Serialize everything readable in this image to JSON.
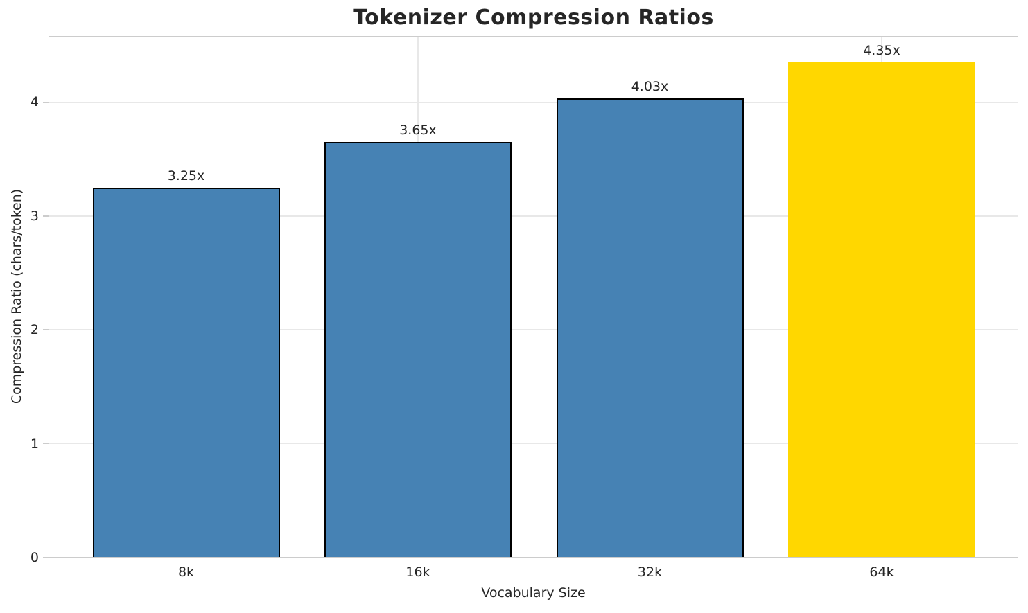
{
  "chart_data": {
    "type": "bar",
    "title": "Tokenizer Compression Ratios",
    "xlabel": "Vocabulary Size",
    "ylabel": "Compression Ratio (chars/token)",
    "categories": [
      "8k",
      "16k",
      "32k",
      "64k"
    ],
    "values": [
      3.25,
      3.65,
      4.03,
      4.35
    ],
    "value_labels": [
      "3.25x",
      "3.65x",
      "4.03x",
      "4.35x"
    ],
    "yticks": [
      0,
      1,
      2,
      3,
      4
    ],
    "ylim": [
      0,
      4.58
    ],
    "bar_colors": [
      "#4682B4",
      "#4682B4",
      "#4682B4",
      "#FFD700"
    ],
    "bar_edge_colors": [
      "#000000",
      "#000000",
      "#000000",
      "none"
    ],
    "highlight_index": 3,
    "grid": true,
    "legend": "none",
    "colors": {
      "bar_default": "#4682B4",
      "bar_highlight": "#FFD700",
      "bar_edge": "#000000",
      "text": "#262626",
      "spine": "#cccccc",
      "gridline": "#e8e8e8",
      "background": "#ffffff"
    }
  }
}
